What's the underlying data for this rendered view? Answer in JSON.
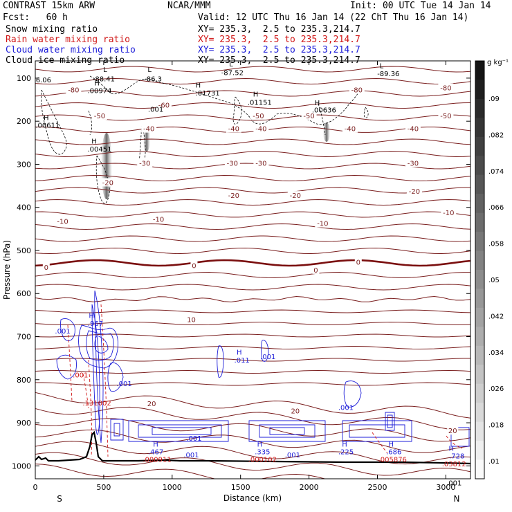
{
  "header": {
    "title": "CONTRAST 15km ARW",
    "center": "NCAR/MMM",
    "init": "Init: 00 UTC Tue 14 Jan 14",
    "fcst": "Fcst:   60 h",
    "valid": "Valid: 12 UTC Thu 16 Jan 14 (22 ChT Thu 16 Jan 14)",
    "fields": [
      {
        "name": "Snow mixing ratio",
        "xy": "XY= 235.3,  2.5 to 235.3,214.7",
        "color": "#000000"
      },
      {
        "name": "Rain water mixing ratio",
        "xy": "XY= 235.3,  2.5 to 235.3,214.7",
        "color": "#d01818"
      },
      {
        "name": "Cloud water mixing ratio",
        "xy": "XY= 235.3,  2.5 to 235.3,214.7",
        "color": "#1c1cd8"
      },
      {
        "name": "Cloud ice mixing ratio",
        "xy": "XY= 235.3,  2.5 to 235.3,214.7",
        "color": "#000000"
      }
    ]
  },
  "chart_data": {
    "type": "cross-section",
    "xlabel": "Distance (km)",
    "ylabel": "Pressure (hPa)",
    "xlim": [
      0,
      3180
    ],
    "ylim": [
      1030,
      60
    ],
    "x_ticks": [
      0,
      500,
      1000,
      1500,
      2000,
      2500,
      3000
    ],
    "y_ticks": [
      100,
      200,
      300,
      400,
      500,
      600,
      700,
      800,
      900,
      1000
    ],
    "x_end_labels": {
      "left": "S",
      "right": "N"
    },
    "colorbar": {
      "unit": "g kg⁻¹",
      "labels": [
        ".09",
        ".082",
        ".074",
        ".066",
        ".058",
        ".05",
        ".042",
        ".034",
        ".026",
        ".018",
        ".01"
      ],
      "levels": 22
    },
    "temperature_labels": [
      {
        "text": "-80",
        "x": 280,
        "p": 130
      },
      {
        "text": "-80",
        "x": 2350,
        "p": 130
      },
      {
        "text": "-80",
        "x": 3000,
        "p": 125
      },
      {
        "text": "-60",
        "x": 940,
        "p": 165
      },
      {
        "text": "-50",
        "x": 470,
        "p": 190
      },
      {
        "text": "-50",
        "x": 1630,
        "p": 190
      },
      {
        "text": "-50",
        "x": 2000,
        "p": 190
      },
      {
        "text": "-50",
        "x": 3000,
        "p": 190
      },
      {
        "text": "-40",
        "x": 830,
        "p": 220
      },
      {
        "text": "-40",
        "x": 1450,
        "p": 220
      },
      {
        "text": "-40",
        "x": 1650,
        "p": 220
      },
      {
        "text": "-40",
        "x": 2300,
        "p": 220
      },
      {
        "text": "-40",
        "x": 2760,
        "p": 220
      },
      {
        "text": "-30",
        "x": 800,
        "p": 300
      },
      {
        "text": "-30",
        "x": 1440,
        "p": 300
      },
      {
        "text": "-30",
        "x": 1650,
        "p": 300
      },
      {
        "text": "-30",
        "x": 2760,
        "p": 300
      },
      {
        "text": "-20",
        "x": 530,
        "p": 345
      },
      {
        "text": "-20",
        "x": 1450,
        "p": 375
      },
      {
        "text": "-20",
        "x": 1900,
        "p": 375
      },
      {
        "text": "-20",
        "x": 2770,
        "p": 365
      },
      {
        "text": "-10",
        "x": 200,
        "p": 435
      },
      {
        "text": "-10",
        "x": 900,
        "p": 430
      },
      {
        "text": "-10",
        "x": 2100,
        "p": 440
      },
      {
        "text": "-10",
        "x": 3020,
        "p": 415
      },
      {
        "text": "0",
        "x": 80,
        "p": 542
      },
      {
        "text": "0",
        "x": 1160,
        "p": 538
      },
      {
        "text": "0",
        "x": 2050,
        "p": 548
      },
      {
        "text": "0",
        "x": 2360,
        "p": 530
      },
      {
        "text": "10",
        "x": 1140,
        "p": 663
      },
      {
        "text": "20",
        "x": 850,
        "p": 858
      },
      {
        "text": "20",
        "x": 1900,
        "p": 875
      },
      {
        "text": "20",
        "x": 3050,
        "p": 921
      }
    ],
    "extrema_labels": [
      {
        "text": "L",
        "x": 510,
        "p": 86,
        "color": "#000000"
      },
      {
        "text": "L",
        "x": 835,
        "p": 86,
        "color": "#000000"
      },
      {
        "text": "L",
        "x": 1430,
        "p": 73,
        "color": "#000000"
      },
      {
        "text": "L",
        "x": 2530,
        "p": 77,
        "color": "#000000"
      },
      {
        "text": "-88.41",
        "x": 500,
        "p": 107,
        "color": "#000000"
      },
      {
        "text": "-86.3",
        "x": 860,
        "p": 107,
        "color": "#000000"
      },
      {
        "text": "-87.52",
        "x": 1440,
        "p": 93,
        "color": "#000000"
      },
      {
        "text": "-89.36",
        "x": 2580,
        "p": 95,
        "color": "#000000"
      },
      {
        "text": "6.06",
        "x": 60,
        "p": 110,
        "color": "#000000"
      },
      {
        "text": "H",
        "x": 450,
        "p": 117,
        "color": "#000000"
      },
      {
        "text": ".00974",
        "x": 470,
        "p": 135,
        "color": "#000000"
      },
      {
        "text": "H",
        "x": 1190,
        "p": 122,
        "color": "#000000"
      },
      {
        "text": ".01731",
        "x": 1260,
        "p": 140,
        "color": "#000000"
      },
      {
        "text": "H",
        "x": 1610,
        "p": 143,
        "color": "#000000"
      },
      {
        "text": ".01151",
        "x": 1640,
        "p": 162,
        "color": "#000000"
      },
      {
        "text": "H",
        "x": 2060,
        "p": 163,
        "color": "#000000"
      },
      {
        "text": ".00636",
        "x": 2110,
        "p": 180,
        "color": "#000000"
      },
      {
        "text": ".001",
        "x": 880,
        "p": 178,
        "color": "#000000"
      },
      {
        "text": "H",
        "x": 80,
        "p": 197,
        "color": "#000000"
      },
      {
        "text": ".00611",
        "x": 90,
        "p": 215,
        "color": "#000000"
      },
      {
        "text": "H",
        "x": 430,
        "p": 252,
        "color": "#000000"
      },
      {
        "text": ".00451",
        "x": 470,
        "p": 270,
        "color": "#000000"
      },
      {
        "text": "H",
        "x": 410,
        "p": 657,
        "color": "#1c1cd8"
      },
      {
        "text": ".967",
        "x": 440,
        "p": 675,
        "color": "#1c1cd8"
      },
      {
        "text": ".001",
        "x": 200,
        "p": 693,
        "color": "#1c1cd8"
      },
      {
        "text": "H",
        "x": 1490,
        "p": 742,
        "color": "#1c1cd8"
      },
      {
        "text": ".011",
        "x": 1510,
        "p": 760,
        "color": "#1c1cd8"
      },
      {
        "text": ".001",
        "x": 1700,
        "p": 752,
        "color": "#1c1cd8"
      },
      {
        "text": ".001",
        "x": 330,
        "p": 795,
        "color": "#d01818"
      },
      {
        "text": ".001",
        "x": 650,
        "p": 815,
        "color": "#1c1cd8"
      },
      {
        "text": ".001",
        "x": 2270,
        "p": 870,
        "color": "#1c1cd8"
      },
      {
        "text": ".001",
        "x": 1160,
        "p": 942,
        "color": "#1c1cd8"
      },
      {
        "text": "H",
        "x": 880,
        "p": 955,
        "color": "#1c1cd8"
      },
      {
        "text": ".467",
        "x": 880,
        "p": 973,
        "color": "#1c1cd8"
      },
      {
        "text": ".000911",
        "x": 890,
        "p": 991,
        "color": "#d01818"
      },
      {
        "text": ".001",
        "x": 1140,
        "p": 980,
        "color": "#1c1cd8"
      },
      {
        "text": "H",
        "x": 1640,
        "p": 955,
        "color": "#1c1cd8"
      },
      {
        "text": ".335",
        "x": 1660,
        "p": 973,
        "color": "#1c1cd8"
      },
      {
        "text": ".000102",
        "x": 1660,
        "p": 991,
        "color": "#d01818"
      },
      {
        "text": ".001",
        "x": 1880,
        "p": 980,
        "color": "#1c1cd8"
      },
      {
        "text": "H",
        "x": 2260,
        "p": 955,
        "color": "#1c1cd8"
      },
      {
        "text": ".225",
        "x": 2270,
        "p": 973,
        "color": "#1c1cd8"
      },
      {
        "text": "H",
        "x": 2600,
        "p": 955,
        "color": "#1c1cd8"
      },
      {
        "text": ".686",
        "x": 2620,
        "p": 973,
        "color": "#1c1cd8"
      },
      {
        "text": ".005876",
        "x": 2610,
        "p": 991,
        "color": "#d01818"
      },
      {
        "text": "H",
        "x": 3040,
        "p": 965,
        "color": "#1c1cd8"
      },
      {
        "text": ".728",
        "x": 3080,
        "p": 983,
        "color": "#1c1cd8"
      },
      {
        "text": ".03812",
        "x": 3060,
        "p": 1001,
        "color": "#d01818"
      },
      {
        "text": ".131002",
        "x": 450,
        "p": 860,
        "color": "#d01818"
      },
      {
        "text": ".001",
        "x": 3060,
        "p": 1045,
        "color": "#000000"
      }
    ]
  }
}
